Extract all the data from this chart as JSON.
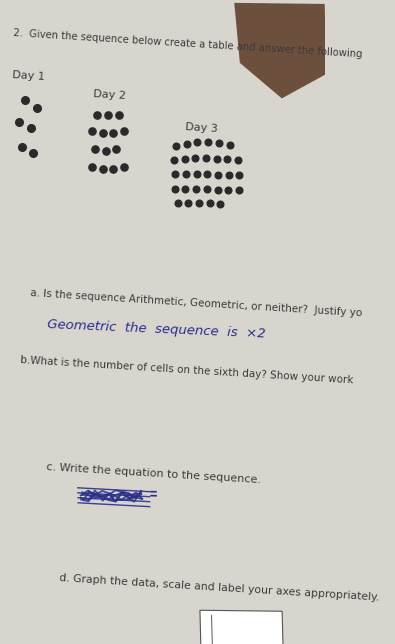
{
  "bg_color": "#d8d5ce",
  "paper_color": "#e8e5de",
  "dot_color": "#2a2a2a",
  "text_color": "#3a3a3a",
  "handwriting_color": "#2a2f8a",
  "scratch_color": "#2a2f8a",
  "finger_color": "#5a3825",
  "title_line1": "2.  Given the sequence below create a table and answer the following",
  "day1_label": "Day 1",
  "day2_label": "Day 2",
  "day3_label": "Day 3",
  "question_a": "a. Is the sequence Arithmetic, Geometric, or neither?  Justify yo",
  "answer_a1": "Geometric  the  sequence  is  ×2",
  "question_b": "b.What is the number of cells on the sixth day? Show your work",
  "question_c": "c. Write the equation to the sequence.",
  "question_d": "d. Graph the data, scale and label your axes appropriately."
}
